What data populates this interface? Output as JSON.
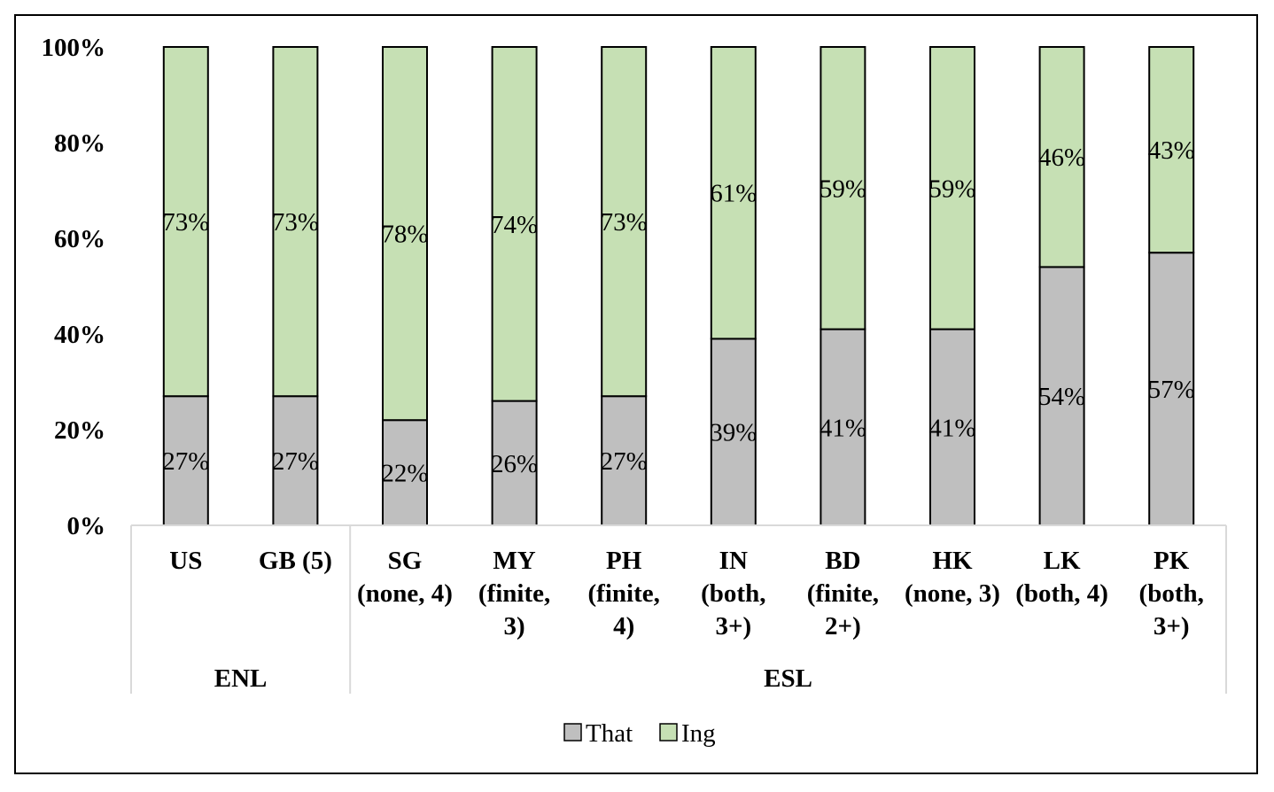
{
  "chart_data": {
    "type": "bar",
    "stacked": true,
    "percent": true,
    "categories": [
      [
        "US"
      ],
      [
        "GB (5)"
      ],
      [
        "SG",
        "(none, 4)"
      ],
      [
        "MY",
        "(finite,",
        "3)"
      ],
      [
        "PH",
        "(finite,",
        "4)"
      ],
      [
        "IN",
        "(both,",
        "3+)"
      ],
      [
        "BD",
        "(finite,",
        "2+)"
      ],
      [
        "HK",
        "(none, 3)"
      ],
      [
        "LK",
        "(both, 4)"
      ],
      [
        "PK",
        "(both,",
        "3+)"
      ]
    ],
    "groups": [
      {
        "label": "ENL",
        "from": 0,
        "to": 1
      },
      {
        "label": "ESL",
        "from": 2,
        "to": 9
      }
    ],
    "series": [
      {
        "name": "That",
        "color": "#bfbfbf",
        "values": [
          27,
          27,
          22,
          26,
          27,
          39,
          41,
          41,
          54,
          57
        ],
        "labels": [
          "27%",
          "27%",
          "22%",
          "26%",
          "27%",
          "39%",
          "41%",
          "41%",
          "54%",
          "57%"
        ]
      },
      {
        "name": "Ing",
        "color": "#c6e0b4",
        "values": [
          73,
          73,
          78,
          74,
          73,
          61,
          59,
          59,
          46,
          43
        ],
        "labels": [
          "73%",
          "73%",
          "78%",
          "74%",
          "73%",
          "61%",
          "59%",
          "59%",
          "46%",
          "43%"
        ]
      }
    ],
    "yticks": [
      "0%",
      "20%",
      "40%",
      "60%",
      "80%",
      "100%"
    ],
    "ylim": [
      0,
      100
    ],
    "grid": false,
    "legend": "bottom"
  }
}
